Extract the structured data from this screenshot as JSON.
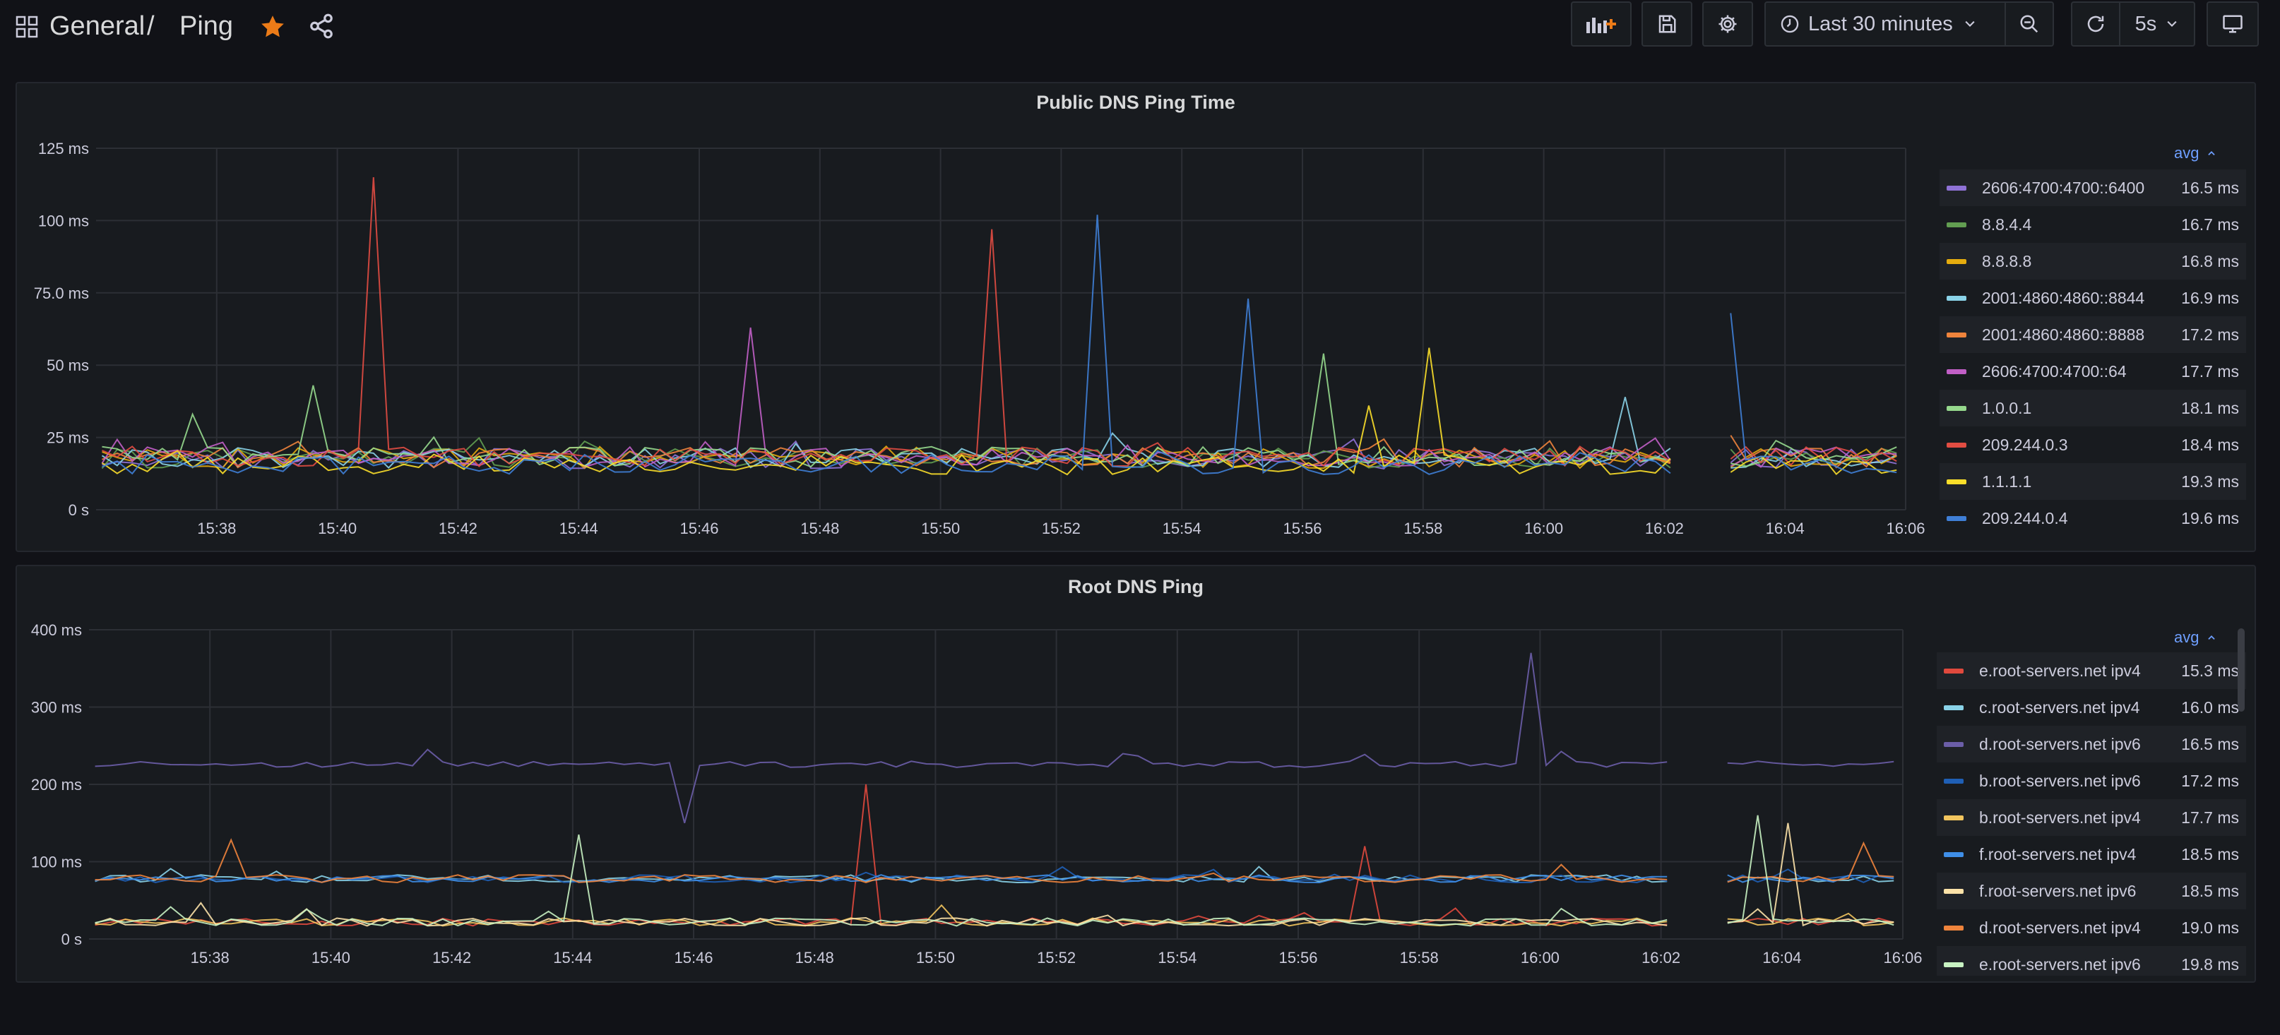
{
  "header": {
    "breadcrumb_folder": "General",
    "breadcrumb_sep": "/",
    "breadcrumb_dashboard": "Ping",
    "time_range": "Last 30 minutes",
    "refresh_interval": "5s",
    "accent_star": "#eb7b18"
  },
  "panels": [
    {
      "title": "Public DNS Ping Time",
      "legend_header": "avg",
      "legend": [
        {
          "name": "2606:4700:4700::6400",
          "avg": "16.5 ms",
          "color": "#8f72d6"
        },
        {
          "name": "8.8.4.4",
          "avg": "16.7 ms",
          "color": "#629e51"
        },
        {
          "name": "8.8.8.8",
          "avg": "16.8 ms",
          "color": "#e5ac0e"
        },
        {
          "name": "2001:4860:4860::8844",
          "avg": "16.9 ms",
          "color": "#8ad3e8"
        },
        {
          "name": "2001:4860:4860::8888",
          "avg": "17.2 ms",
          "color": "#ef843c"
        },
        {
          "name": "2606:4700:4700::64",
          "avg": "17.7 ms",
          "color": "#c15fc6"
        },
        {
          "name": "1.0.0.1",
          "avg": "18.1 ms",
          "color": "#96d98d"
        },
        {
          "name": "209.244.0.3",
          "avg": "18.4 ms",
          "color": "#e24d42"
        },
        {
          "name": "1.1.1.1",
          "avg": "19.3 ms",
          "color": "#fade2a"
        },
        {
          "name": "209.244.0.4",
          "avg": "19.6 ms",
          "color": "#3f7fd6"
        }
      ]
    },
    {
      "title": "Root DNS Ping",
      "legend_header": "avg",
      "legend": [
        {
          "name": "e.root-servers.net ipv4",
          "avg": "15.3 ms",
          "color": "#e0493d"
        },
        {
          "name": "c.root-servers.net ipv4",
          "avg": "16.0 ms",
          "color": "#8ad3e8"
        },
        {
          "name": "d.root-servers.net ipv6",
          "avg": "16.5 ms",
          "color": "#6b5ea8"
        },
        {
          "name": "b.root-servers.net ipv6",
          "avg": "17.2 ms",
          "color": "#1f5fb5"
        },
        {
          "name": "b.root-servers.net ipv4",
          "avg": "17.7 ms",
          "color": "#f2c55e"
        },
        {
          "name": "f.root-servers.net ipv4",
          "avg": "18.5 ms",
          "color": "#3f8fe8"
        },
        {
          "name": "f.root-servers.net ipv6",
          "avg": "18.5 ms",
          "color": "#fce2a8"
        },
        {
          "name": "d.root-servers.net ipv4",
          "avg": "19.0 ms",
          "color": "#ef843c"
        },
        {
          "name": "e.root-servers.net ipv6",
          "avg": "19.8 ms",
          "color": "#c8f2c2"
        }
      ]
    }
  ],
  "chart_data": [
    {
      "type": "line",
      "title": "Public DNS Ping Time",
      "x_ticks": [
        "15:38",
        "15:40",
        "15:42",
        "15:44",
        "15:46",
        "15:48",
        "15:50",
        "15:52",
        "15:54",
        "15:56",
        "15:58",
        "16:00",
        "16:02",
        "16:04",
        "16:06"
      ],
      "y_ticks": [
        "0 s",
        "25 ms",
        "50 ms",
        "75.0 ms",
        "100 ms",
        "125 ms"
      ],
      "ylim": [
        0,
        125
      ],
      "x_start": "15:36",
      "x_end": "16:06",
      "baseline_ms": 17,
      "gap": [
        "16:02:20",
        "16:03:00"
      ],
      "spikes": [
        {
          "series": "209.244.0.3",
          "time": "15:40:30",
          "value": 115
        },
        {
          "series": "209.244.0.3",
          "time": "15:50:45",
          "value": 97
        },
        {
          "series": "209.244.0.4",
          "time": "15:52:30",
          "value": 102
        },
        {
          "series": "209.244.0.4",
          "time": "15:55:00",
          "value": 73
        },
        {
          "series": "209.244.0.4",
          "time": "16:03:00",
          "value": 68
        },
        {
          "series": "2606:4700:4700::64",
          "time": "15:46:45",
          "value": 63
        },
        {
          "series": "1.1.1.1",
          "time": "15:58:00",
          "value": 56
        },
        {
          "series": "1.0.0.1",
          "time": "15:56:15",
          "value": 54
        },
        {
          "series": "1.0.0.1",
          "time": "15:39:30",
          "value": 43
        },
        {
          "series": "2001:4860:4860::8844",
          "time": "16:01:15",
          "value": 39
        },
        {
          "series": "1.1.1.1",
          "time": "15:57:00",
          "value": 36
        },
        {
          "series": "1.0.0.1",
          "time": "15:37:30",
          "value": 33
        }
      ]
    },
    {
      "type": "line",
      "title": "Root DNS Ping",
      "x_ticks": [
        "15:38",
        "15:40",
        "15:42",
        "15:44",
        "15:46",
        "15:48",
        "15:50",
        "15:52",
        "15:54",
        "15:56",
        "15:58",
        "16:00",
        "16:02",
        "16:04",
        "16:06"
      ],
      "y_ticks": [
        "0 s",
        "100 ms",
        "200 ms",
        "300 ms",
        "400 ms"
      ],
      "ylim": [
        0,
        400
      ],
      "x_start": "15:36",
      "x_end": "16:06",
      "gap": [
        "16:02:20",
        "16:03:00"
      ],
      "bands_ms": {
        "low": 22,
        "mid": 78,
        "high": 226
      },
      "spikes": [
        {
          "series": "d.root-servers.net ipv6",
          "time": "15:59:45",
          "value": 370
        },
        {
          "series": "e.root-servers.net ipv4",
          "time": "15:48:45",
          "value": 200
        },
        {
          "series": "f.root-servers.net ipv6",
          "time": "16:04:00",
          "value": 150
        },
        {
          "series": "d.root-servers.net ipv6",
          "time": "15:45:45",
          "value": 150
        },
        {
          "series": "e.root-servers.net ipv6",
          "time": "16:03:30",
          "value": 160
        },
        {
          "series": "e.root-servers.net ipv6",
          "time": "15:44:00",
          "value": 135
        },
        {
          "series": "d.root-servers.net ipv4",
          "time": "15:38:15",
          "value": 128
        },
        {
          "series": "d.root-servers.net ipv4",
          "time": "16:05:15",
          "value": 124
        },
        {
          "series": "e.root-servers.net ipv4",
          "time": "15:57:00",
          "value": 120
        }
      ]
    }
  ]
}
